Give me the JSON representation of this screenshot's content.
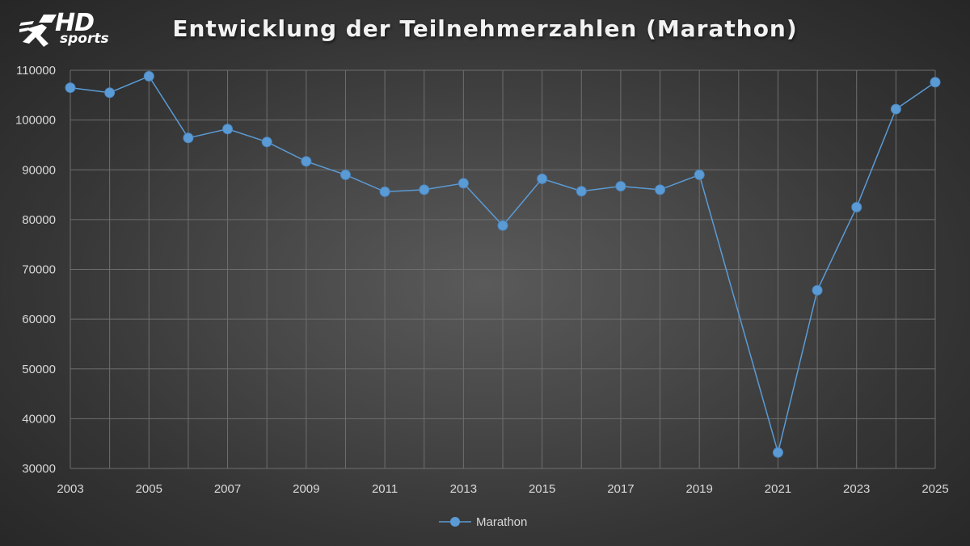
{
  "logo": {
    "hd_text": "HD",
    "sports_text": "sports"
  },
  "chart_data": {
    "type": "line",
    "title": "Entwicklung der Teilnehmerzahlen (Marathon)",
    "xlabel": "",
    "ylabel": "",
    "x": [
      2003,
      2004,
      2005,
      2006,
      2007,
      2008,
      2009,
      2010,
      2011,
      2012,
      2013,
      2014,
      2015,
      2016,
      2017,
      2018,
      2019,
      2021,
      2022,
      2023,
      2024,
      2025
    ],
    "x_tick_labels": [
      "2003",
      "2005",
      "2007",
      "2009",
      "2011",
      "2013",
      "2015",
      "2017",
      "2019",
      "2021",
      "2023",
      "2025"
    ],
    "y_tick_labels": [
      "30000",
      "40000",
      "50000",
      "60000",
      "70000",
      "80000",
      "90000",
      "100000",
      "110000"
    ],
    "xlim": [
      2003,
      2025
    ],
    "ylim": [
      30000,
      110000
    ],
    "grid": true,
    "legend_position": "bottom",
    "series": [
      {
        "name": "Marathon",
        "color": "#5b9bd5",
        "values": [
          106500,
          105500,
          108800,
          96400,
          98200,
          95600,
          91700,
          89000,
          85600,
          86000,
          87300,
          78800,
          88200,
          85700,
          86700,
          86000,
          89000,
          33200,
          65800,
          82500,
          102200,
          107600
        ]
      }
    ]
  }
}
